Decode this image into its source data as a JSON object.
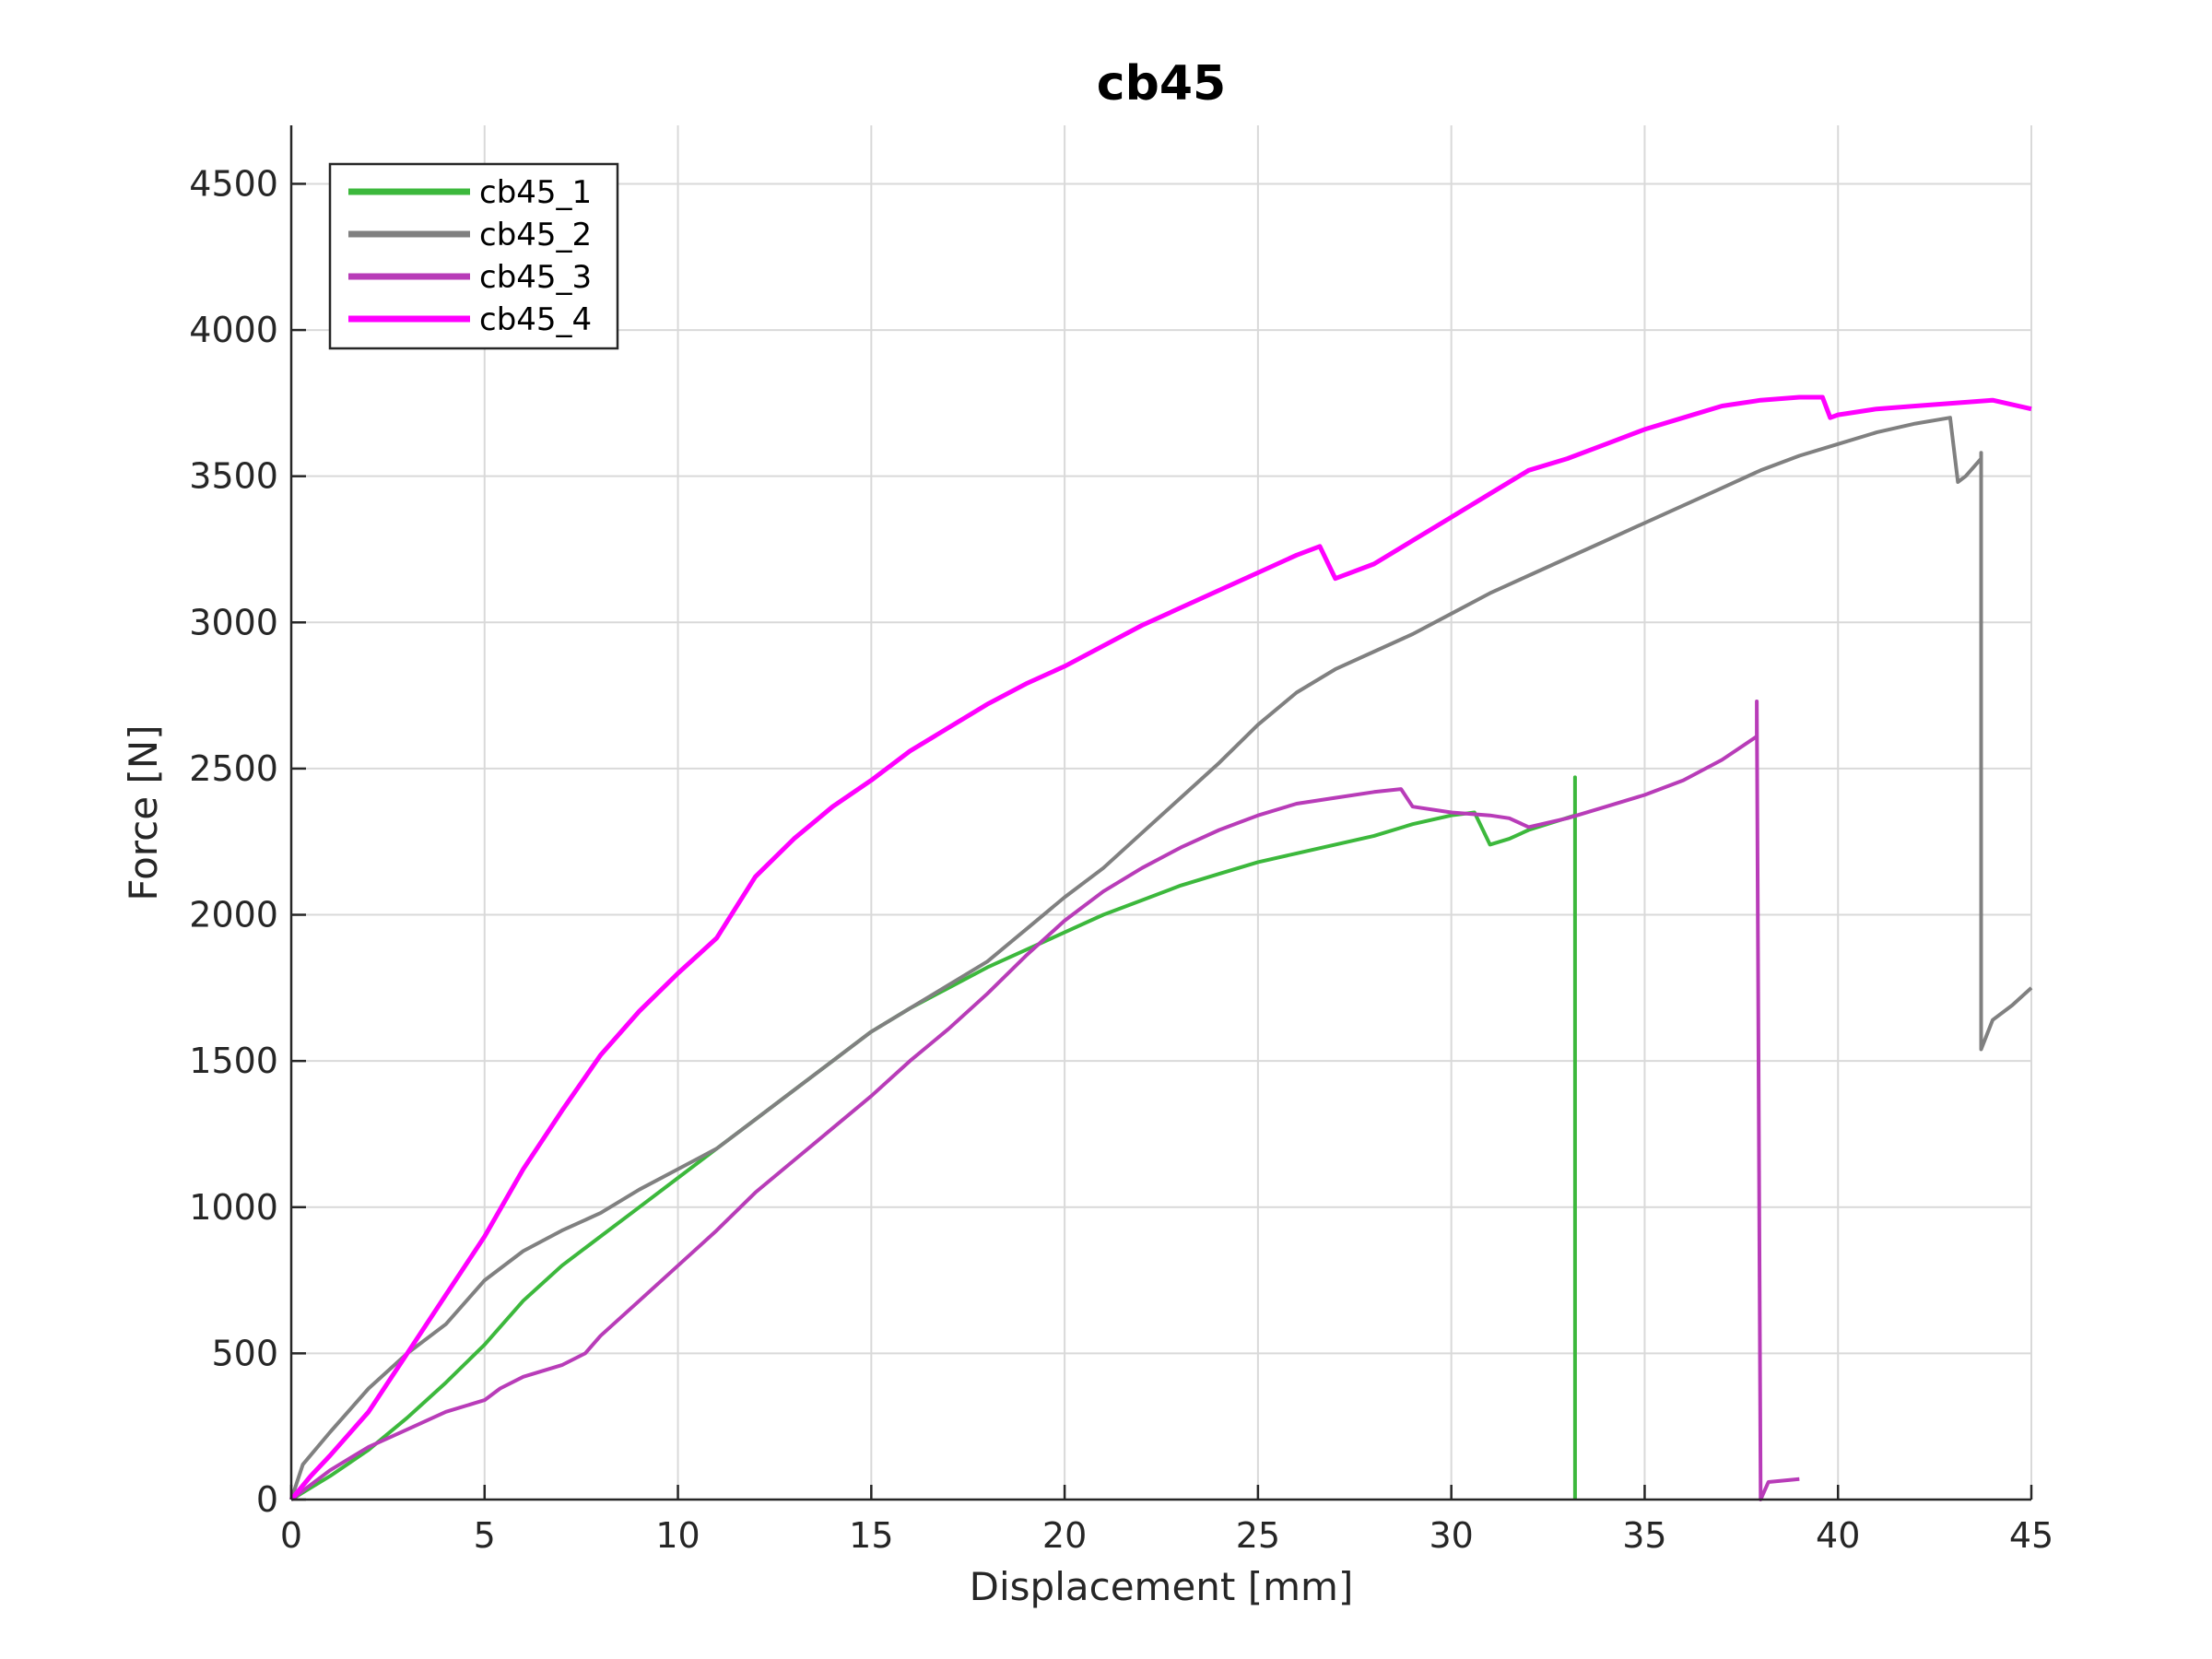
{
  "chart_data": {
    "type": "line",
    "title": "cb45",
    "xlabel": "Displacement [mm]",
    "ylabel": "Force [N]",
    "xlim": [
      0,
      45
    ],
    "ylim": [
      0,
      4700
    ],
    "xticks": [
      0,
      5,
      10,
      15,
      20,
      25,
      30,
      35,
      40,
      45
    ],
    "yticks": [
      0,
      500,
      1000,
      1500,
      2000,
      2500,
      3000,
      3500,
      4000,
      4500
    ],
    "grid": true,
    "legend_position": "top-left",
    "series": [
      {
        "name": "cb45_1",
        "color": "#3cb83c",
        "points": [
          [
            0,
            0
          ],
          [
            1,
            80
          ],
          [
            2,
            170
          ],
          [
            3,
            280
          ],
          [
            4,
            400
          ],
          [
            5,
            530
          ],
          [
            6,
            680
          ],
          [
            7,
            800
          ],
          [
            8,
            900
          ],
          [
            9,
            1000
          ],
          [
            10,
            1100
          ],
          [
            11,
            1200
          ],
          [
            12,
            1300
          ],
          [
            13,
            1400
          ],
          [
            14,
            1500
          ],
          [
            15,
            1600
          ],
          [
            16,
            1680
          ],
          [
            17,
            1750
          ],
          [
            18,
            1820
          ],
          [
            19,
            1880
          ],
          [
            20,
            1940
          ],
          [
            21,
            2000
          ],
          [
            22,
            2050
          ],
          [
            23,
            2100
          ],
          [
            24,
            2140
          ],
          [
            25,
            2180
          ],
          [
            26,
            2210
          ],
          [
            27,
            2240
          ],
          [
            28,
            2270
          ],
          [
            29,
            2310
          ],
          [
            30,
            2340
          ],
          [
            30.6,
            2350
          ],
          [
            31,
            2240
          ],
          [
            31.5,
            2260
          ],
          [
            32,
            2290
          ],
          [
            33.2,
            2340
          ],
          [
            33.2,
            2470
          ],
          [
            33.2,
            0
          ]
        ]
      },
      {
        "name": "cb45_2",
        "color": "#808080",
        "points": [
          [
            0,
            0
          ],
          [
            0.3,
            120
          ],
          [
            1,
            230
          ],
          [
            2,
            380
          ],
          [
            3,
            500
          ],
          [
            4,
            600
          ],
          [
            5,
            750
          ],
          [
            6,
            850
          ],
          [
            7,
            920
          ],
          [
            8,
            980
          ],
          [
            9,
            1060
          ],
          [
            10,
            1130
          ],
          [
            11,
            1200
          ],
          [
            12,
            1300
          ],
          [
            13,
            1400
          ],
          [
            14,
            1500
          ],
          [
            15,
            1600
          ],
          [
            16,
            1680
          ],
          [
            17,
            1760
          ],
          [
            18,
            1840
          ],
          [
            19,
            1950
          ],
          [
            20,
            2060
          ],
          [
            21,
            2160
          ],
          [
            22,
            2280
          ],
          [
            23,
            2400
          ],
          [
            24,
            2520
          ],
          [
            25,
            2650
          ],
          [
            26,
            2760
          ],
          [
            27,
            2840
          ],
          [
            28,
            2900
          ],
          [
            29,
            2960
          ],
          [
            30,
            3030
          ],
          [
            31,
            3100
          ],
          [
            32,
            3160
          ],
          [
            33,
            3220
          ],
          [
            34,
            3280
          ],
          [
            35,
            3340
          ],
          [
            36,
            3400
          ],
          [
            37,
            3460
          ],
          [
            38,
            3520
          ],
          [
            39,
            3570
          ],
          [
            40,
            3610
          ],
          [
            41,
            3650
          ],
          [
            42,
            3680
          ],
          [
            42.9,
            3700
          ],
          [
            43.1,
            3480
          ],
          [
            43.3,
            3500
          ],
          [
            43.7,
            3560
          ],
          [
            43.7,
            3580
          ],
          [
            43.7,
            1540
          ],
          [
            44,
            1640
          ],
          [
            44.5,
            1690
          ],
          [
            45,
            1750
          ]
        ]
      },
      {
        "name": "cb45_3",
        "color": "#b83cb8",
        "points": [
          [
            0,
            0
          ],
          [
            1,
            100
          ],
          [
            2,
            180
          ],
          [
            3,
            240
          ],
          [
            4,
            300
          ],
          [
            5,
            340
          ],
          [
            5.4,
            380
          ],
          [
            6,
            420
          ],
          [
            7,
            460
          ],
          [
            7.6,
            500
          ],
          [
            8,
            560
          ],
          [
            9,
            680
          ],
          [
            10,
            800
          ],
          [
            11,
            920
          ],
          [
            12,
            1050
          ],
          [
            13,
            1160
          ],
          [
            14,
            1270
          ],
          [
            15,
            1380
          ],
          [
            16,
            1500
          ],
          [
            17,
            1610
          ],
          [
            18,
            1730
          ],
          [
            19,
            1860
          ],
          [
            20,
            1980
          ],
          [
            21,
            2080
          ],
          [
            22,
            2160
          ],
          [
            23,
            2230
          ],
          [
            24,
            2290
          ],
          [
            25,
            2340
          ],
          [
            26,
            2380
          ],
          [
            27,
            2400
          ],
          [
            28,
            2420
          ],
          [
            28.7,
            2430
          ],
          [
            29,
            2370
          ],
          [
            30,
            2350
          ],
          [
            31,
            2340
          ],
          [
            31.5,
            2330
          ],
          [
            32,
            2300
          ],
          [
            33,
            2330
          ],
          [
            34,
            2370
          ],
          [
            35,
            2410
          ],
          [
            36,
            2460
          ],
          [
            37,
            2530
          ],
          [
            37.9,
            2610
          ],
          [
            37.9,
            2730
          ],
          [
            38,
            0
          ],
          [
            38.2,
            60
          ],
          [
            39,
            70
          ]
        ]
      },
      {
        "name": "cb45_4",
        "color": "#ff00ff",
        "points": [
          [
            0,
            0
          ],
          [
            0.5,
            80
          ],
          [
            1,
            150
          ],
          [
            2,
            300
          ],
          [
            3,
            500
          ],
          [
            4,
            700
          ],
          [
            5,
            900
          ],
          [
            6,
            1130
          ],
          [
            7,
            1330
          ],
          [
            8,
            1520
          ],
          [
            9,
            1670
          ],
          [
            10,
            1800
          ],
          [
            11,
            1920
          ],
          [
            12,
            2130
          ],
          [
            13,
            2260
          ],
          [
            14,
            2370
          ],
          [
            15,
            2460
          ],
          [
            16,
            2560
          ],
          [
            17,
            2640
          ],
          [
            18,
            2720
          ],
          [
            19,
            2790
          ],
          [
            20,
            2850
          ],
          [
            21,
            2920
          ],
          [
            22,
            2990
          ],
          [
            23,
            3050
          ],
          [
            24,
            3110
          ],
          [
            25,
            3170
          ],
          [
            26,
            3230
          ],
          [
            26.6,
            3260
          ],
          [
            27,
            3150
          ],
          [
            28,
            3200
          ],
          [
            29,
            3280
          ],
          [
            30,
            3360
          ],
          [
            31,
            3440
          ],
          [
            32,
            3520
          ],
          [
            33,
            3560
          ],
          [
            34,
            3610
          ],
          [
            35,
            3660
          ],
          [
            36,
            3700
          ],
          [
            37,
            3740
          ],
          [
            38,
            3760
          ],
          [
            39,
            3770
          ],
          [
            39.6,
            3770
          ],
          [
            39.8,
            3700
          ],
          [
            40,
            3710
          ],
          [
            41,
            3730
          ],
          [
            42,
            3740
          ],
          [
            43,
            3750
          ],
          [
            44,
            3760
          ],
          [
            45,
            3730
          ]
        ]
      }
    ]
  }
}
